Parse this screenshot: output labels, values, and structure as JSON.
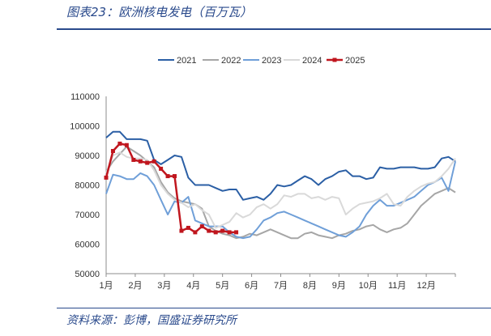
{
  "figure": {
    "title": "图表23：欧洲核电发电（百万瓦）",
    "source": "资料来源：彭博，国盛证券研究所"
  },
  "chart_data": {
    "type": "line",
    "title": "",
    "xlabel": "",
    "ylabel": "",
    "x_ticks": [
      "1月",
      "2月",
      "3月",
      "4月",
      "5月",
      "6月",
      "7月",
      "8月",
      "9月",
      "10月",
      "11月",
      "12月"
    ],
    "y_ticks": [
      "50000",
      "60000",
      "70000",
      "80000",
      "90000",
      "100000",
      "110000"
    ],
    "xlim": [
      1,
      52
    ],
    "ylim": [
      50000,
      110000
    ],
    "legend_position": "top",
    "grid": false,
    "series": [
      {
        "name": "2021",
        "color": "#2b5fa5",
        "marker": false,
        "x": [
          1,
          2,
          3,
          4,
          5,
          6,
          7,
          8,
          9,
          10,
          11,
          12,
          13,
          14,
          15,
          16,
          17,
          18,
          19,
          20,
          21,
          22,
          23,
          24,
          25,
          26,
          27,
          28,
          29,
          30,
          31,
          32,
          33,
          34,
          35,
          36,
          37,
          38,
          39,
          40,
          41,
          42,
          43,
          44,
          45,
          46,
          47,
          48,
          49,
          50,
          51,
          52
        ],
        "values": [
          96000,
          98000,
          98000,
          95500,
          95500,
          95500,
          95000,
          88500,
          87000,
          88500,
          90000,
          89500,
          82500,
          80000,
          80000,
          80000,
          79000,
          78000,
          78500,
          78500,
          75000,
          75500,
          76000,
          75000,
          77000,
          80000,
          79500,
          80000,
          81500,
          83000,
          82000,
          80000,
          82000,
          83000,
          84500,
          85000,
          83000,
          83000,
          82000,
          82500,
          86000,
          85500,
          85500,
          86000,
          86000,
          86000,
          85500,
          85500,
          86000,
          89000,
          89500,
          88000
        ]
      },
      {
        "name": "2022",
        "color": "#a6a6a6",
        "marker": false,
        "x": [
          1,
          2,
          3,
          4,
          5,
          6,
          7,
          8,
          9,
          10,
          11,
          12,
          13,
          14,
          15,
          16,
          17,
          18,
          19,
          20,
          21,
          22,
          23,
          24,
          25,
          26,
          27,
          28,
          29,
          30,
          31,
          32,
          33,
          34,
          35,
          36,
          37,
          38,
          39,
          40,
          41,
          42,
          43,
          44,
          45,
          46,
          47,
          48,
          49,
          50,
          51,
          52
        ],
        "values": [
          84500,
          88000,
          90500,
          93000,
          91500,
          90000,
          88000,
          86000,
          81000,
          77500,
          75500,
          74500,
          74000,
          73500,
          72000,
          66000,
          64500,
          63500,
          63000,
          62000,
          62500,
          63500,
          63000,
          64000,
          65000,
          64000,
          63000,
          62000,
          62000,
          63500,
          64000,
          63000,
          62500,
          62000,
          63000,
          63500,
          64500,
          65000,
          66000,
          66500,
          65000,
          64000,
          65000,
          65500,
          67000,
          70000,
          73000,
          75000,
          77000,
          78000,
          79000,
          77500
        ]
      },
      {
        "name": "2023",
        "color": "#6f9fd8",
        "marker": false,
        "x": [
          1,
          2,
          3,
          4,
          5,
          6,
          7,
          8,
          9,
          10,
          11,
          12,
          13,
          14,
          15,
          16,
          17,
          18,
          19,
          20,
          21,
          22,
          23,
          24,
          25,
          26,
          27,
          28,
          29,
          30,
          31,
          32,
          33,
          34,
          35,
          36,
          37,
          38,
          39,
          40,
          41,
          42,
          43,
          44,
          45,
          46,
          47,
          48,
          49,
          50,
          51,
          52
        ],
        "values": [
          77000,
          83500,
          83000,
          82000,
          82000,
          84000,
          83000,
          80000,
          75000,
          70000,
          74500,
          74000,
          76000,
          68000,
          67000,
          66000,
          66000,
          66000,
          64000,
          62500,
          62000,
          62500,
          65000,
          68000,
          69000,
          70500,
          71000,
          70000,
          69000,
          68000,
          67000,
          66000,
          65000,
          64000,
          63000,
          62500,
          64000,
          66000,
          70000,
          73000,
          75000,
          73000,
          73000,
          74000,
          75000,
          76000,
          78000,
          80000,
          81000,
          82500,
          78000,
          88000
        ]
      },
      {
        "name": "2024",
        "color": "#d9d9d9",
        "marker": false,
        "x": [
          1,
          2,
          3,
          4,
          5,
          6,
          7,
          8,
          9,
          10,
          11,
          12,
          13,
          14,
          15,
          16,
          17,
          18,
          19,
          20,
          21,
          22,
          23,
          24,
          25,
          26,
          27,
          28,
          29,
          30,
          31,
          32,
          33,
          34,
          35,
          36,
          37,
          38,
          39,
          40,
          41,
          42,
          43,
          44,
          45,
          46,
          47,
          48,
          49,
          50,
          51,
          52
        ],
        "values": [
          84000,
          90000,
          91000,
          89500,
          89000,
          89000,
          88500,
          85000,
          80000,
          77000,
          75000,
          74000,
          72500,
          73500,
          71500,
          70000,
          65500,
          66500,
          67500,
          70500,
          69000,
          70000,
          72500,
          73500,
          72000,
          73500,
          76500,
          76000,
          77000,
          77000,
          75500,
          76000,
          75000,
          76000,
          75500,
          70000,
          72000,
          73500,
          74000,
          74500,
          75500,
          77000,
          73500,
          73000,
          76000,
          78000,
          79500,
          80500,
          81000,
          83000,
          85500,
          89000
        ]
      },
      {
        "name": "2025",
        "color": "#c0161e",
        "marker": true,
        "x": [
          1,
          2,
          3,
          4,
          5,
          6,
          7,
          8,
          9,
          10,
          11,
          12,
          13,
          14,
          15,
          16,
          17,
          18,
          19,
          20
        ],
        "values": [
          82500,
          91500,
          94000,
          93500,
          88500,
          88000,
          87500,
          88000,
          85500,
          83000,
          83000,
          64500,
          65500,
          64000,
          66000,
          64500,
          64000,
          64500,
          64000,
          64000
        ]
      }
    ]
  }
}
